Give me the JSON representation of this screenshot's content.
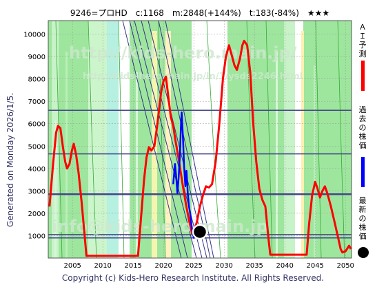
{
  "title": "9246=プロHD　c:1168　m:2848(+144%)　t:183(-84%)　★★★",
  "generated": "Generated on Monday 2026/1/5.",
  "footer": "Copyright (c) Kids-Hero Research Institute. All Rights Reserved.",
  "watermarks": [
    "http://kids-hero.main.jp/",
    "http://kids-hero.main.jp/in/1/ysds2246.html",
    "info@kids-hero.main.jp"
  ],
  "legend": [
    {
      "label": "ＡＩ予測",
      "color": "#ff0000"
    },
    {
      "label": "過去の株価",
      "color": "#0000ff"
    },
    {
      "label": "最新の株価",
      "color": "#000000"
    }
  ],
  "chart_data": {
    "type": "line",
    "xlim": [
      2001,
      2051
    ],
    "ylim": [
      0,
      10600
    ],
    "x_ticks": [
      2005,
      2010,
      2015,
      2020,
      2025,
      2030,
      2035,
      2040,
      2045,
      2050
    ],
    "y_ticks": [
      1000,
      2000,
      3000,
      4000,
      5000,
      6000,
      7000,
      8000,
      9000,
      10000
    ],
    "horizontal_lines": [
      6600,
      4650,
      2848,
      1050,
      900
    ],
    "series": [
      {
        "name": "ＡＩ予測",
        "color": "#ff0000",
        "points": [
          [
            2001.2,
            2300
          ],
          [
            2001.8,
            4200
          ],
          [
            2002.3,
            5600
          ],
          [
            2002.6,
            5900
          ],
          [
            2003.0,
            5800
          ],
          [
            2003.4,
            5000
          ],
          [
            2003.8,
            4300
          ],
          [
            2004.1,
            4000
          ],
          [
            2004.5,
            4200
          ],
          [
            2004.9,
            4800
          ],
          [
            2005.2,
            5100
          ],
          [
            2005.6,
            4600
          ],
          [
            2006.0,
            3800
          ],
          [
            2006.5,
            2500
          ],
          [
            2007.0,
            1000
          ],
          [
            2007.3,
            100
          ],
          [
            2015.8,
            100
          ],
          [
            2016.3,
            1800
          ],
          [
            2016.8,
            3500
          ],
          [
            2017.2,
            4500
          ],
          [
            2017.6,
            4950
          ],
          [
            2018.0,
            4800
          ],
          [
            2018.5,
            5000
          ],
          [
            2019.0,
            6000
          ],
          [
            2019.6,
            7400
          ],
          [
            2020.0,
            7900
          ],
          [
            2020.4,
            8100
          ],
          [
            2020.8,
            7200
          ],
          [
            2021.2,
            6300
          ],
          [
            2021.6,
            5900
          ],
          [
            2022.0,
            5200
          ],
          [
            2022.4,
            4600
          ],
          [
            2022.8,
            3900
          ],
          [
            2023.2,
            3200
          ],
          [
            2023.7,
            2400
          ],
          [
            2024.2,
            1700
          ],
          [
            2024.7,
            1100
          ],
          [
            2025.0,
            1200
          ],
          [
            2025.5,
            1600
          ],
          [
            2026.0,
            2300
          ],
          [
            2026.5,
            2800
          ],
          [
            2027.0,
            3200
          ],
          [
            2027.5,
            3150
          ],
          [
            2028.0,
            3300
          ],
          [
            2028.6,
            4300
          ],
          [
            2029.2,
            6000
          ],
          [
            2029.8,
            8000
          ],
          [
            2030.3,
            9000
          ],
          [
            2030.8,
            9500
          ],
          [
            2031.2,
            9100
          ],
          [
            2031.7,
            8600
          ],
          [
            2032.1,
            8400
          ],
          [
            2032.6,
            8900
          ],
          [
            2033.0,
            9500
          ],
          [
            2033.3,
            9700
          ],
          [
            2033.8,
            9500
          ],
          [
            2034.3,
            8300
          ],
          [
            2034.8,
            6000
          ],
          [
            2035.3,
            4300
          ],
          [
            2035.8,
            3100
          ],
          [
            2036.3,
            2600
          ],
          [
            2036.8,
            2300
          ],
          [
            2037.3,
            900
          ],
          [
            2037.6,
            150
          ],
          [
            2043.6,
            150
          ],
          [
            2044.0,
            1500
          ],
          [
            2044.5,
            2800
          ],
          [
            2045.0,
            3400
          ],
          [
            2045.4,
            3100
          ],
          [
            2045.8,
            2700
          ],
          [
            2046.2,
            3000
          ],
          [
            2046.6,
            3200
          ],
          [
            2047.0,
            2900
          ],
          [
            2047.6,
            2300
          ],
          [
            2048.2,
            1600
          ],
          [
            2048.8,
            900
          ],
          [
            2049.2,
            400
          ],
          [
            2049.5,
            250
          ],
          [
            2050.0,
            300
          ],
          [
            2050.6,
            550
          ],
          [
            2050.9,
            400
          ]
        ]
      },
      {
        "name": "過去の株価",
        "color": "#0000ff",
        "points": [
          [
            2021.6,
            3300
          ],
          [
            2021.9,
            4200
          ],
          [
            2022.1,
            3600
          ],
          [
            2022.3,
            2900
          ],
          [
            2022.5,
            3600
          ],
          [
            2022.7,
            4600
          ],
          [
            2022.9,
            6100
          ],
          [
            2023.0,
            6500
          ],
          [
            2023.2,
            5400
          ],
          [
            2023.4,
            4100
          ],
          [
            2023.6,
            3200
          ],
          [
            2023.8,
            3900
          ],
          [
            2024.0,
            2900
          ],
          [
            2024.2,
            2300
          ],
          [
            2024.4,
            2000
          ],
          [
            2024.6,
            1500
          ],
          [
            2024.8,
            1150
          ],
          [
            2025.0,
            900
          ],
          [
            2025.3,
            1000
          ]
        ]
      }
    ],
    "latest": {
      "x": 2026.0,
      "y": 1168,
      "color": "#000000"
    }
  }
}
